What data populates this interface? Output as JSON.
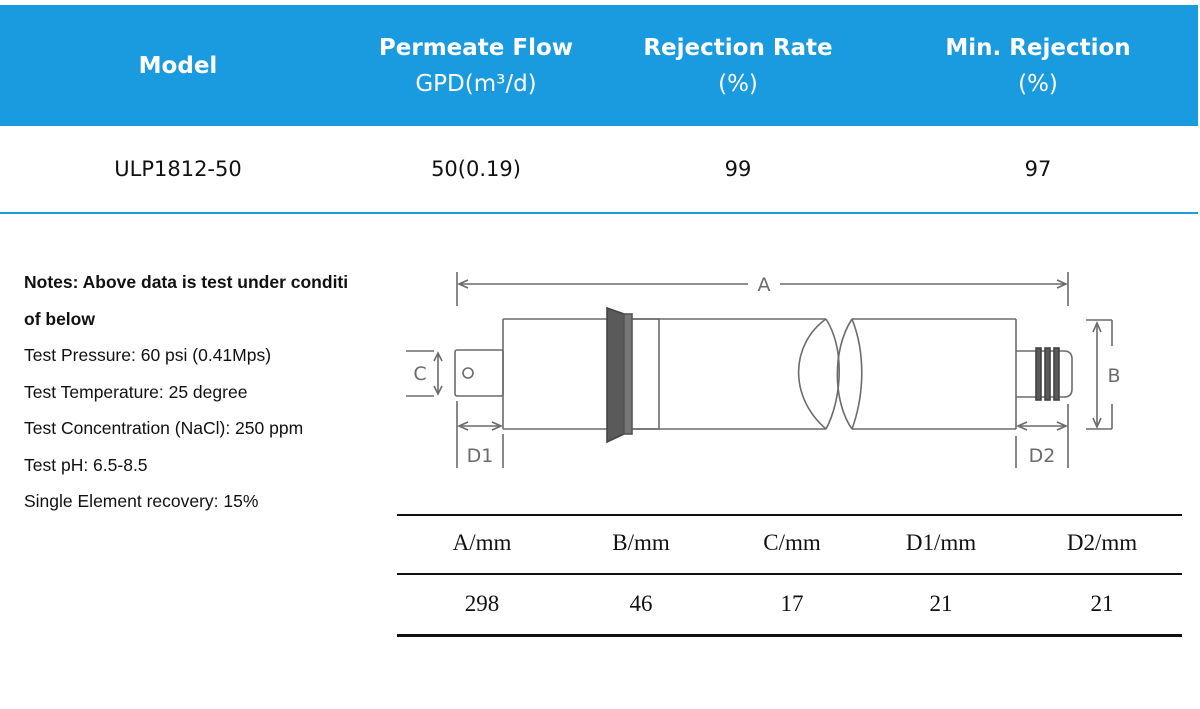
{
  "spec_table": {
    "headers": {
      "model": "Model",
      "permeate_flow": "Permeate Flow",
      "permeate_flow_unit": "GPD(m³/d)",
      "rejection_rate": "Rejection Rate",
      "rejection_rate_unit": "(%)",
      "min_rejection": "Min. Rejection",
      "min_rejection_unit": "(%)"
    },
    "row": {
      "model": "ULP1812-50",
      "permeate_flow": "50(0.19)",
      "rejection_rate": "99",
      "min_rejection": "97"
    }
  },
  "notes": {
    "title_line1": "Notes: Above data is test under conditi",
    "title_line2": "of below",
    "items": [
      "Test Pressure: 60 psi (0.41Mps)",
      "Test Temperature: 25 degree",
      "Test Concentration (NaCl): 250 ppm",
      "Test pH: 6.5-8.5",
      "Single Element recovery: 15%"
    ]
  },
  "diagram": {
    "labels": {
      "a": "A",
      "b": "B",
      "c": "C",
      "d1": "D1",
      "d2": "D2"
    }
  },
  "dimension_table": {
    "headers": [
      "A/mm",
      "B/mm",
      "C/mm",
      "D1/mm",
      "D2/mm"
    ],
    "values": [
      "298",
      "46",
      "17",
      "21",
      "21"
    ]
  },
  "colors": {
    "header_bg": "#1b9bdf",
    "header_text": "#ffffff",
    "diagram_stroke": "#6b6b6b",
    "band": "#5a5a5a"
  }
}
